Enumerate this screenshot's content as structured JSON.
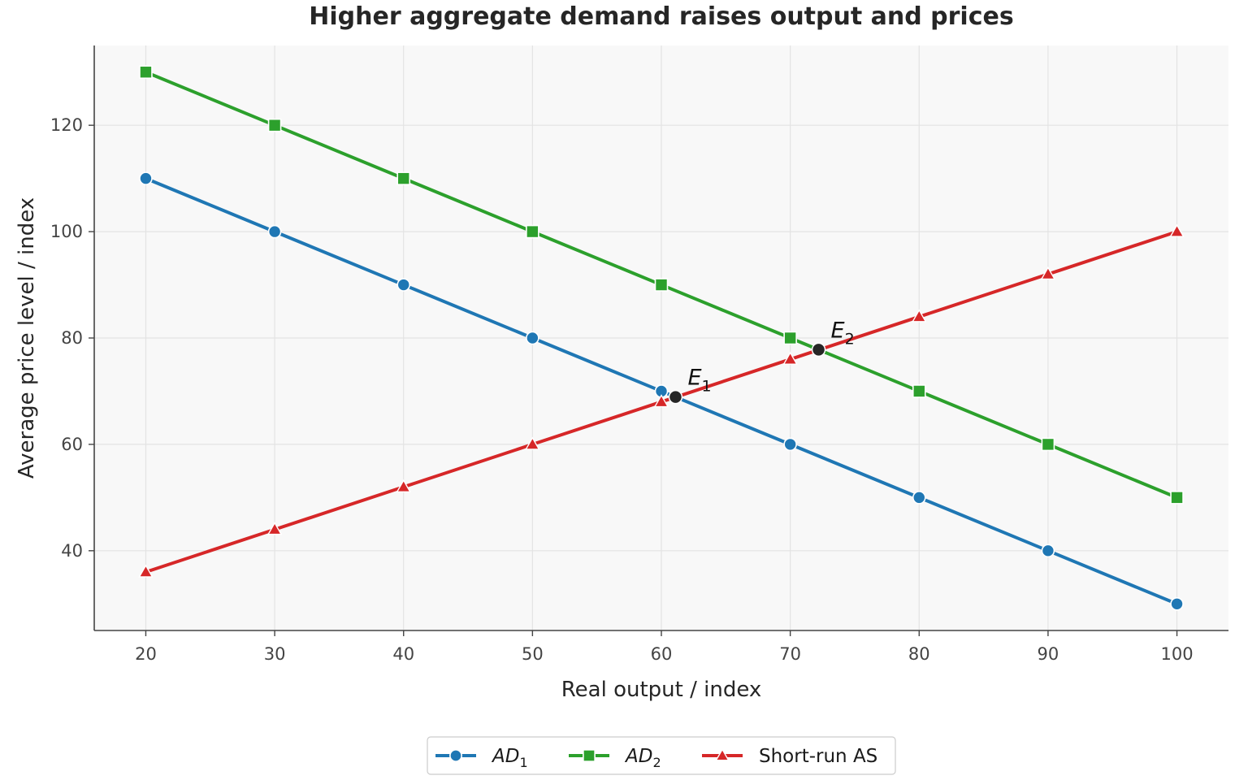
{
  "chart_data": {
    "type": "line",
    "title": "Higher aggregate demand raises output and prices",
    "xlabel": "Real output / index",
    "ylabel": "Average price level / index",
    "xlim": [
      16,
      104
    ],
    "ylim": [
      25,
      135
    ],
    "xticks": [
      20,
      30,
      40,
      50,
      60,
      70,
      80,
      90,
      100
    ],
    "yticks": [
      40,
      60,
      80,
      100,
      120
    ],
    "grid": true,
    "legend_position": "bottom-center",
    "x": [
      20,
      30,
      40,
      50,
      60,
      70,
      80,
      90,
      100
    ],
    "series": [
      {
        "name": "AD",
        "subscript": "1",
        "italic": true,
        "color": "#1f77b4",
        "marker": "circle",
        "values": [
          110,
          100,
          90,
          80,
          70,
          60,
          50,
          40,
          30
        ]
      },
      {
        "name": "AD",
        "subscript": "2",
        "italic": true,
        "color": "#2ca02c",
        "marker": "square",
        "values": [
          130,
          120,
          110,
          100,
          90,
          80,
          70,
          60,
          50
        ]
      },
      {
        "name": "Short-run AS",
        "subscript": "",
        "italic": false,
        "color": "#d62728",
        "marker": "triangle",
        "values": [
          36,
          44,
          52,
          60,
          68,
          76,
          84,
          92,
          100
        ]
      }
    ],
    "equilibria": [
      {
        "label": "E",
        "subscript": "1",
        "x": 61.1,
        "y": 68.9
      },
      {
        "label": "E",
        "subscript": "2",
        "x": 72.2,
        "y": 77.8
      }
    ],
    "colors": {
      "plot_background": "#f8f8f8",
      "grid": "#e3e3e3",
      "axis": "#444444",
      "equilibrium_point": "#262626"
    }
  }
}
